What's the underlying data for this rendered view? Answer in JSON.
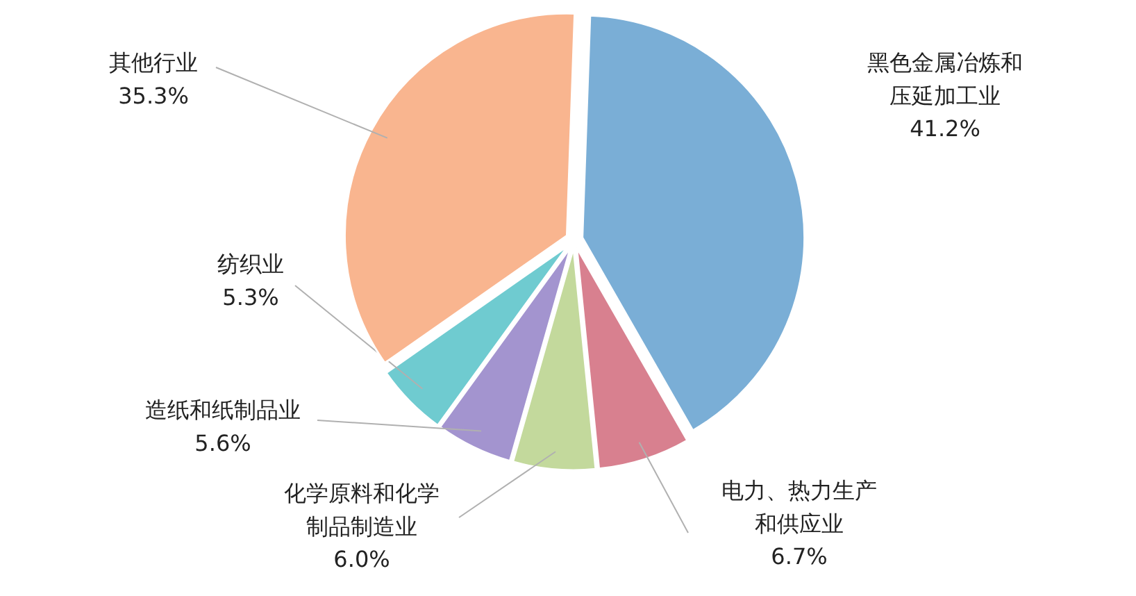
{
  "chart_data": {
    "type": "pie",
    "categories": [
      "黑色金属冶炼和压延加工业",
      "电力、热力生产和供应业",
      "化学原料和化学制品制造业",
      "造纸和纸制品业",
      "纺织业",
      "其他行业"
    ],
    "values": [
      41.2,
      6.7,
      6.0,
      5.6,
      5.3,
      35.3
    ],
    "colors": [
      "#7aaed6",
      "#d8808f",
      "#c3d99c",
      "#a394cf",
      "#6fcbd0",
      "#f9b58f"
    ],
    "value_labels": [
      "41.2%",
      "6.7%",
      "6.0%",
      "5.6%",
      "5.3%",
      "35.3%"
    ]
  }
}
